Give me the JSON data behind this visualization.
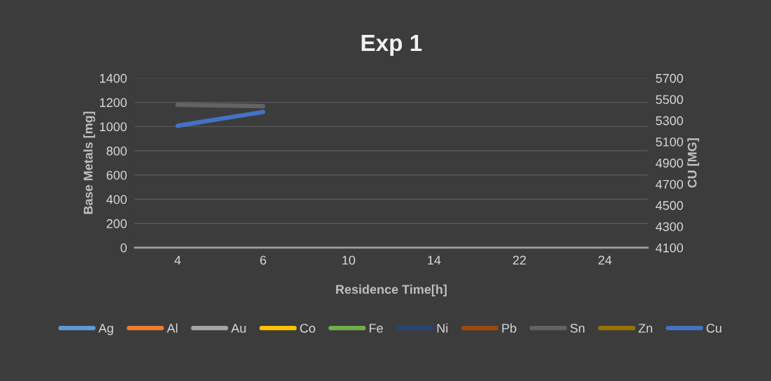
{
  "chart_data": {
    "type": "line",
    "title": "Exp 1",
    "xlabel": "Residence Time[h]",
    "ylabel": "Base Metals [mg]",
    "y2label": "CU [MG]",
    "categories": [
      "4",
      "6",
      "10",
      "14",
      "22",
      "24"
    ],
    "series": [
      {
        "name": "Ag",
        "color": "#5b9bd5",
        "values": [
          null,
          null,
          null,
          null,
          null,
          null
        ]
      },
      {
        "name": "Al",
        "color": "#ed7d31",
        "values": [
          null,
          null,
          null,
          null,
          null,
          null
        ]
      },
      {
        "name": "Au",
        "color": "#a5a5a5",
        "values": [
          null,
          null,
          null,
          null,
          null,
          null
        ]
      },
      {
        "name": "Co",
        "color": "#ffc000",
        "values": [
          null,
          null,
          null,
          null,
          null,
          null
        ]
      },
      {
        "name": "Fe",
        "color": "#70ad47",
        "values": [
          null,
          null,
          null,
          null,
          null,
          null
        ]
      },
      {
        "name": "Ni",
        "color": "#264478",
        "values": [
          null,
          null,
          null,
          null,
          null,
          null
        ]
      },
      {
        "name": "Pb",
        "color": "#9e480e",
        "values": [
          null,
          null,
          null,
          null,
          null,
          null
        ]
      },
      {
        "name": "Sn",
        "color": "#636363",
        "values": [
          1180,
          1168,
          null,
          null,
          null,
          null
        ]
      },
      {
        "name": "Zn",
        "color": "#997300",
        "values": [
          null,
          null,
          null,
          null,
          null,
          null
        ]
      },
      {
        "name": "Cu",
        "color": "#4472c4",
        "axis": "y2",
        "values": [
          5250,
          5380,
          null,
          null,
          null,
          null
        ]
      }
    ],
    "ylim": [
      0,
      1400
    ],
    "yticks": [
      0,
      200,
      400,
      600,
      800,
      1000,
      1200,
      1400
    ],
    "y2lim": [
      4100,
      5700
    ],
    "y2ticks": [
      4100,
      4300,
      4500,
      4700,
      4900,
      5100,
      5300,
      5500,
      5700
    ],
    "grid": "y",
    "legend": "bottom",
    "marker": "none",
    "line_style": "solid"
  }
}
